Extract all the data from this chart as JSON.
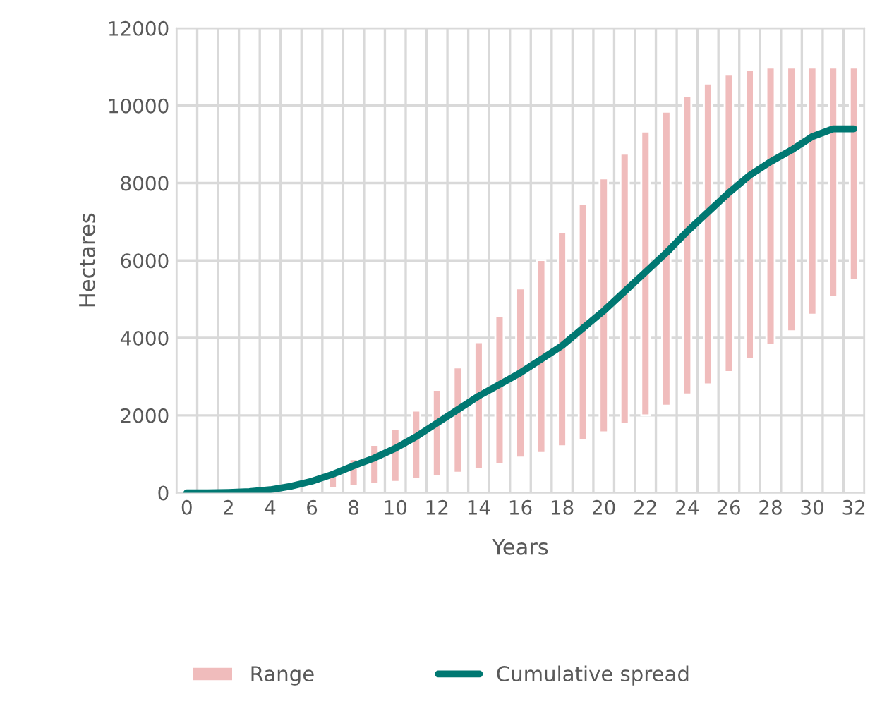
{
  "chart_data": {
    "type": "bar",
    "xlabel": "Years",
    "ylabel": "Hectares",
    "categories": [
      "0",
      null,
      "2",
      null,
      "4",
      null,
      "6",
      null,
      "8",
      null,
      "10",
      null,
      "12",
      null,
      "14",
      null,
      "16",
      null,
      "18",
      null,
      "20",
      null,
      "22",
      null,
      "24",
      null,
      "26",
      null,
      "28",
      null,
      "30",
      null,
      "32"
    ],
    "ylim": [
      0,
      12000
    ],
    "yticks": [
      0,
      2000,
      4000,
      6000,
      8000,
      10000,
      12000
    ],
    "grid": true,
    "legend": "bottom",
    "series": [
      {
        "name": "Range",
        "color": "#f0bcbc",
        "base": [
          null,
          null,
          null,
          null,
          null,
          null,
          null,
          120,
          170,
          230,
          280,
          350,
          430,
          520,
          620,
          740,
          910,
          1030,
          1200,
          1370,
          1560,
          1780,
          2000,
          2250,
          2540,
          2800,
          3120,
          3460,
          3810,
          4170,
          4600,
          5050,
          5500
        ],
        "values": [
          null,
          null,
          null,
          null,
          null,
          null,
          null,
          470,
          700,
          1010,
          1360,
          1770,
          2230,
          2720,
          3270,
          3830,
          4370,
          4980,
          5530,
          6080,
          6560,
          6980,
          7330,
          7590,
          7710,
          7770,
          7680,
          7470,
          7170,
          6810,
          6380,
          5930,
          5480
        ]
      },
      {
        "name": "Cumulative spread",
        "type": "line",
        "color": "#007872",
        "values": [
          0,
          0,
          10,
          30,
          80,
          170,
          300,
          480,
          700,
          900,
          1150,
          1450,
          1800,
          2150,
          2500,
          2800,
          3100,
          3450,
          3800,
          4250,
          4700,
          5200,
          5700,
          6200,
          6750,
          7250,
          7750,
          8200,
          8550,
          8850,
          9200,
          9400,
          9400
        ]
      }
    ]
  }
}
